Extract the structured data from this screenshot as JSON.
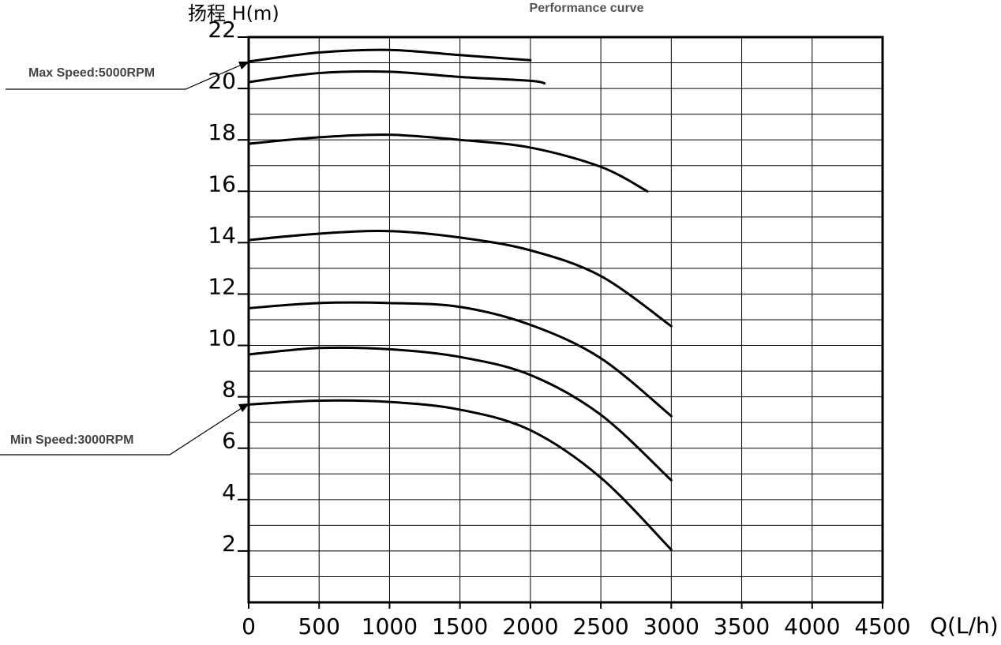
{
  "chart_data": {
    "type": "line",
    "title": "Performance curve",
    "xlabel": "Q(L/h)",
    "ylabel": "扬程 H(m)",
    "xlim": [
      0,
      4500
    ],
    "xticks": [
      0,
      500,
      1000,
      1500,
      2000,
      2500,
      3000,
      3500,
      4000,
      4500
    ],
    "ylim": [
      0,
      22
    ],
    "yticks": [
      2,
      4,
      6,
      8,
      10,
      12,
      14,
      16,
      18,
      20,
      22
    ],
    "yminorticks": [
      1,
      3,
      5,
      7,
      9,
      11,
      13,
      15,
      17,
      19,
      21
    ],
    "grid": true,
    "annotations": [
      {
        "text": "Max Speed:5000RPM"
      },
      {
        "text": "Min Speed:3000RPM"
      }
    ],
    "series": [
      {
        "color": "#000000",
        "x": [
          0,
          500,
          1000,
          1500,
          2000
        ],
        "values": [
          21.05,
          21.4,
          21.5,
          21.3,
          21.1
        ]
      },
      {
        "color": "#000000",
        "x": [
          0,
          500,
          1000,
          1500,
          2000,
          2100
        ],
        "values": [
          20.25,
          20.6,
          20.65,
          20.45,
          20.3,
          20.2
        ]
      },
      {
        "color": "#000000",
        "x": [
          0,
          500,
          1000,
          1500,
          2000,
          2500,
          2830
        ],
        "values": [
          17.85,
          18.1,
          18.2,
          18.0,
          17.7,
          16.95,
          16.0
        ]
      },
      {
        "color": "#000000",
        "x": [
          0,
          500,
          1000,
          1500,
          2000,
          2500,
          3000
        ],
        "values": [
          14.1,
          14.35,
          14.45,
          14.2,
          13.7,
          12.7,
          10.75
        ]
      },
      {
        "color": "#000000",
        "x": [
          0,
          500,
          1000,
          1500,
          2000,
          2500,
          3000
        ],
        "values": [
          11.45,
          11.65,
          11.65,
          11.5,
          10.8,
          9.5,
          7.25
        ]
      },
      {
        "color": "#000000",
        "x": [
          0,
          500,
          1000,
          1500,
          2000,
          2500,
          3000
        ],
        "values": [
          9.65,
          9.9,
          9.85,
          9.55,
          8.85,
          7.3,
          4.75
        ]
      },
      {
        "color": "#000000",
        "x": [
          0,
          500,
          1000,
          1500,
          2000,
          2500,
          3000
        ],
        "values": [
          7.7,
          7.85,
          7.8,
          7.5,
          6.7,
          4.85,
          2.05
        ]
      }
    ]
  }
}
